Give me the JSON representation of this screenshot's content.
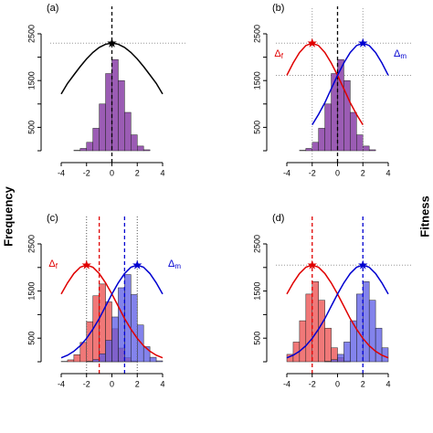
{
  "y_label": "Frequency",
  "y2_label": "Fitness",
  "chart_data": [
    {
      "type": "histogram",
      "panel": "(a)",
      "bins": [
        -3,
        -2.5,
        -2,
        -1.5,
        -1,
        -0.5,
        0,
        0.5,
        1,
        1.5,
        2,
        2.5,
        3
      ],
      "series": [
        {
          "color": "#9b5cb4",
          "values": [
            10,
            50,
            180,
            480,
            1000,
            1650,
            1950,
            1500,
            820,
            340,
            100,
            20
          ]
        }
      ],
      "curves": [
        {
          "color": "#000000",
          "x": [
            -4,
            -3.5,
            -3,
            -2.5,
            -2,
            -1.5,
            -1,
            -0.5,
            0,
            0.5,
            1,
            1.5,
            2,
            2.5,
            3,
            3.5,
            4
          ],
          "values": [
            1214,
            1440,
            1621,
            1799,
            1963,
            2102,
            2209,
            2277,
            2300,
            2277,
            2209,
            2102,
            1963,
            1799,
            1621,
            1440,
            1214
          ]
        }
      ],
      "vlines": [
        {
          "x": 0,
          "color": "#000000",
          "style": "dashed"
        }
      ],
      "hlines": [
        {
          "y": 2300,
          "color": "#999999",
          "style": "dotted"
        }
      ],
      "xlim": [
        -4,
        4
      ],
      "xticks": [
        -4,
        -2,
        0,
        2,
        4
      ],
      "ylim": [
        0,
        2500
      ],
      "yticks": [
        500,
        1500,
        2500
      ],
      "minor_yticks": [
        0,
        1000,
        2000
      ]
    },
    {
      "type": "histogram",
      "panel": "(b)",
      "bins": [
        -3,
        -2.5,
        -2,
        -1.5,
        -1,
        -0.5,
        0,
        0.5,
        1,
        1.5,
        2,
        2.5,
        3
      ],
      "series": [
        {
          "color": "#9b5cb4",
          "values": [
            10,
            50,
            180,
            480,
            1000,
            1650,
            1950,
            1500,
            820,
            340,
            100,
            20
          ]
        }
      ],
      "curves": [
        {
          "color": "#e00000",
          "label": {
            "symbol": "Δ",
            "subscript": "f"
          },
          "x": [
            -4,
            -3.5,
            -3,
            -2.5,
            -2,
            -1.5,
            -1,
            -0.5,
            0,
            0.5,
            1,
            1.5,
            2
          ],
          "values": [
            1612,
            1877,
            2100,
            2249,
            2300,
            2249,
            2100,
            1877,
            1612,
            1321,
            1027,
            776,
            555
          ]
        },
        {
          "color": "#0000d0",
          "label": {
            "symbol": "Δ",
            "subscript": "m"
          },
          "x": [
            -2,
            -1.5,
            -1,
            -0.5,
            0,
            0.5,
            1,
            1.5,
            2,
            2.5,
            3,
            3.5,
            4
          ],
          "values": [
            555,
            776,
            1027,
            1321,
            1612,
            1877,
            2100,
            2249,
            2300,
            2249,
            2100,
            1877,
            1612
          ]
        }
      ],
      "vlines": [
        {
          "x": 0,
          "color": "#000000",
          "style": "dashed"
        },
        {
          "x": -2,
          "color": "#999999",
          "style": "dotted"
        },
        {
          "x": 2,
          "color": "#999999",
          "style": "dotted"
        }
      ],
      "hlines": [
        {
          "y": 2300,
          "color": "#999999",
          "style": "dotted"
        },
        {
          "y": 1612,
          "color": "#999999",
          "style": "dotted"
        }
      ],
      "xlim": [
        -4,
        4
      ],
      "xticks": [
        -4,
        -2,
        0,
        2,
        4
      ],
      "ylim": [
        0,
        2500
      ],
      "yticks": [
        500,
        1500,
        2500
      ],
      "minor_yticks": [
        0,
        1000,
        2000
      ]
    },
    {
      "type": "histogram",
      "panel": "(c)",
      "bins": [
        -4,
        -3.5,
        -3,
        -2.5,
        -2,
        -1.5,
        -1,
        -0.5,
        0,
        0.5,
        1,
        1.5,
        2,
        2.5,
        3,
        3.5,
        4
      ],
      "series": [
        {
          "color": "#f07878",
          "values": [
            8,
            40,
            150,
            410,
            850,
            1400,
            1650,
            1270,
            700,
            290,
            85,
            17,
            0,
            0,
            0,
            0
          ]
        },
        {
          "color": "#5a5ae6",
          "values": [
            0,
            0,
            0,
            0,
            10,
            48,
            170,
            455,
            950,
            1570,
            1850,
            1425,
            780,
            320,
            95,
            19
          ]
        }
      ],
      "curves": [
        {
          "color": "#e00000",
          "label": {
            "symbol": "Δ",
            "subscript": "f"
          },
          "x": [
            -4,
            -3.5,
            -3,
            -2.5,
            -2,
            -1.5,
            -1,
            -0.5,
            0,
            0.5,
            1,
            1.5,
            2,
            2.5,
            3,
            3.5,
            4
          ],
          "values": [
            1437,
            1673,
            1872,
            2005,
            2050,
            2005,
            1872,
            1673,
            1437,
            1177,
            915,
            692,
            495,
            340,
            222,
            139,
            84
          ]
        },
        {
          "color": "#0000d0",
          "label": {
            "symbol": "Δ",
            "subscript": "m"
          },
          "x": [
            -4,
            -3.5,
            -3,
            -2.5,
            -2,
            -1.5,
            -1,
            -0.5,
            0,
            0.5,
            1,
            1.5,
            2,
            2.5,
            3,
            3.5,
            4
          ],
          "values": [
            84,
            139,
            222,
            340,
            495,
            692,
            915,
            1177,
            1437,
            1673,
            1872,
            2005,
            2050,
            2005,
            1872,
            1673,
            1437
          ]
        }
      ],
      "vlines": [
        {
          "x": -1,
          "color": "#e00000",
          "style": "dashed"
        },
        {
          "x": 1,
          "color": "#0000d0",
          "style": "dashed"
        },
        {
          "x": -2,
          "color": "#555555",
          "style": "dotted"
        },
        {
          "x": 2,
          "color": "#555555",
          "style": "dotted"
        }
      ],
      "hlines": [],
      "xlim": [
        -4,
        4
      ],
      "xticks": [
        -4,
        -2,
        0,
        2,
        4
      ],
      "ylim": [
        0,
        2500
      ],
      "yticks": [
        500,
        1500,
        2500
      ],
      "minor_yticks": [
        0,
        1000,
        2000
      ]
    },
    {
      "type": "histogram",
      "panel": "(d)",
      "bins": [
        -4,
        -3.5,
        -3,
        -2.5,
        -2,
        -1.5,
        -1,
        -0.5,
        0,
        0.5,
        1,
        1.5,
        2,
        2.5,
        3,
        3.5,
        4
      ],
      "series": [
        {
          "color": "#f07878",
          "values": [
            157,
            418,
            870,
            1436,
            1700,
            1305,
            713,
            296,
            87,
            17,
            0,
            0,
            0,
            0,
            0,
            0
          ]
        },
        {
          "color": "#5a5ae6",
          "values": [
            0,
            0,
            0,
            0,
            0,
            0,
            9,
            44,
            157,
            418,
            870,
            1436,
            1700,
            1305,
            713,
            296
          ]
        }
      ],
      "curves": [
        {
          "color": "#e00000",
          "x": [
            -4,
            -3.5,
            -3,
            -2.5,
            -2,
            -1.5,
            -1,
            -0.5,
            0,
            0.5,
            1,
            1.5,
            2,
            2.5,
            3,
            3.5,
            4
          ],
          "values": [
            1437,
            1673,
            1872,
            2005,
            2050,
            2005,
            1872,
            1673,
            1437,
            1177,
            915,
            692,
            495,
            340,
            222,
            139,
            84
          ]
        },
        {
          "color": "#0000d0",
          "x": [
            -4,
            -3.5,
            -3,
            -2.5,
            -2,
            -1.5,
            -1,
            -0.5,
            0,
            0.5,
            1,
            1.5,
            2,
            2.5,
            3,
            3.5,
            4
          ],
          "values": [
            84,
            139,
            222,
            340,
            495,
            692,
            915,
            1177,
            1437,
            1673,
            1872,
            2005,
            2050,
            2005,
            1872,
            1673,
            1437
          ]
        }
      ],
      "vlines": [
        {
          "x": -2,
          "color": "#e00000",
          "style": "dashed"
        },
        {
          "x": 2,
          "color": "#0000d0",
          "style": "dashed"
        }
      ],
      "hlines": [
        {
          "y": 2050,
          "color": "#999999",
          "style": "dotted"
        }
      ],
      "xlim": [
        -4,
        4
      ],
      "xticks": [
        -4,
        -2,
        0,
        2,
        4
      ],
      "ylim": [
        0,
        2500
      ],
      "yticks": [
        500,
        1500,
        2500
      ],
      "minor_yticks": [
        0,
        1000,
        2000
      ]
    }
  ]
}
